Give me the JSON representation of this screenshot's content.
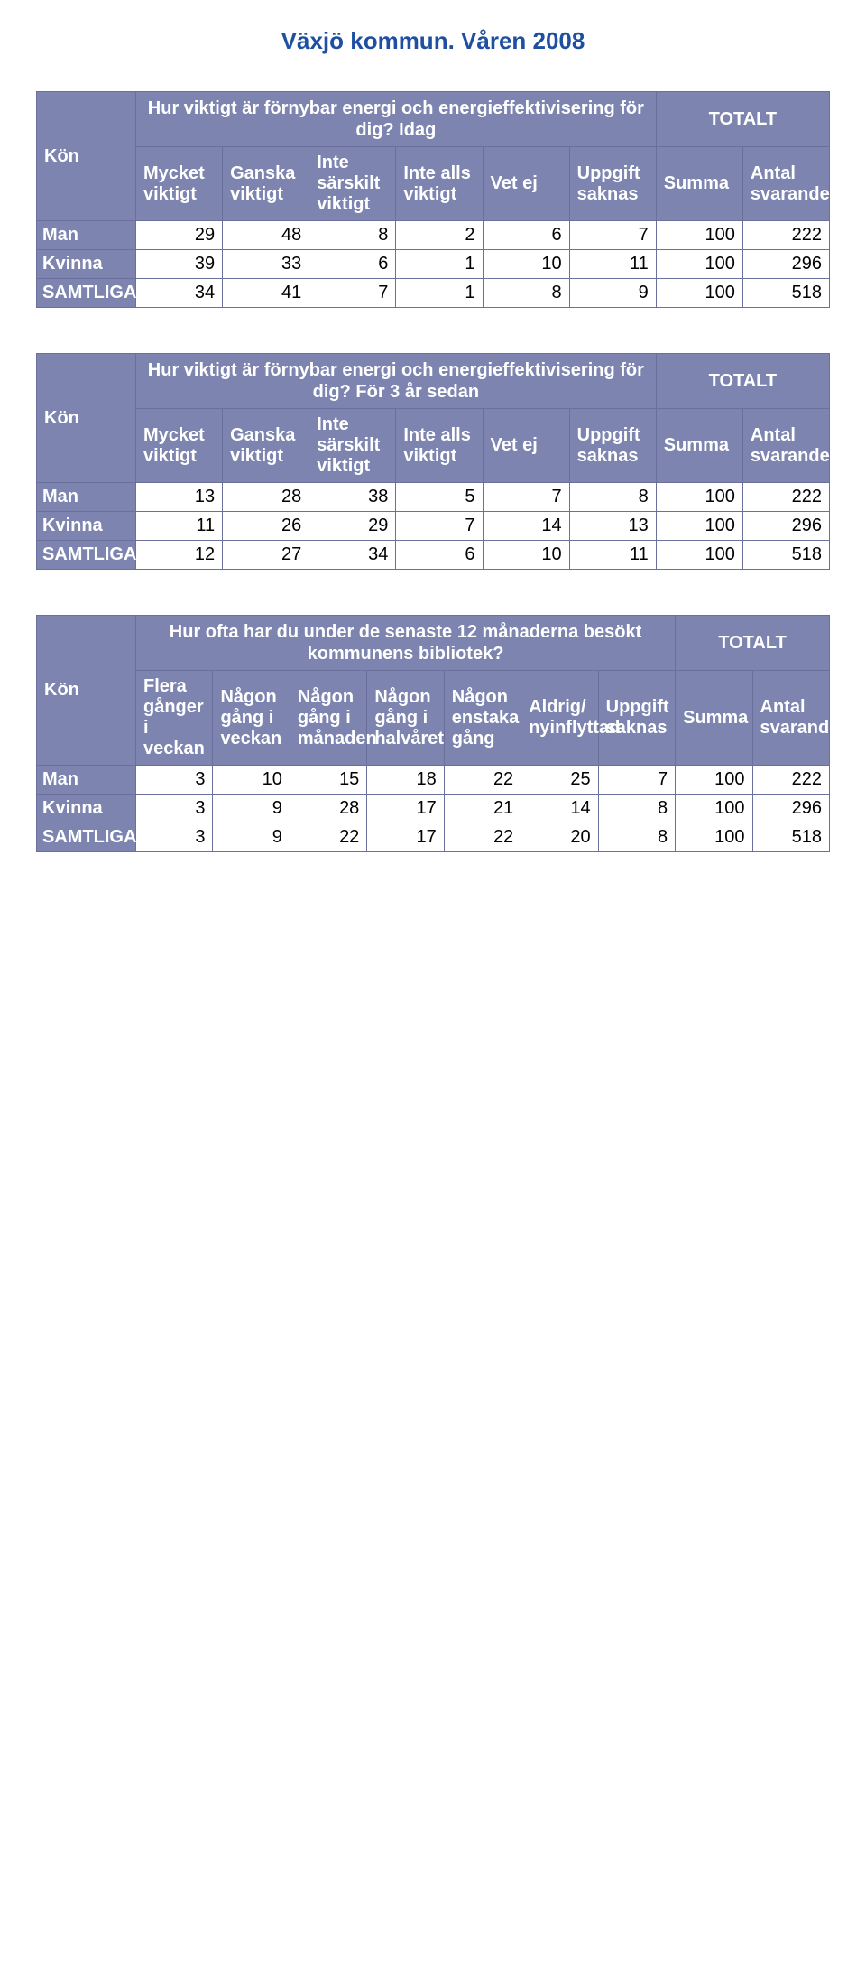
{
  "page": {
    "title": "Växjö kommun. Våren 2008"
  },
  "common": {
    "kon": "Kön",
    "totalt": "TOTALT",
    "summa": "Summa",
    "antal_svarande": "Antal svarande",
    "vet_ej": "Vet ej",
    "uppgift_saknas": "Uppgift saknas",
    "man": "Man",
    "kvinna": "Kvinna",
    "samtliga": "SAMTLIGA"
  },
  "t1": {
    "question": "Hur viktigt är förnybar energi och energieffektivisering för dig? Idag",
    "cols": {
      "c1": "Mycket viktigt",
      "c2": "Ganska viktigt",
      "c3": "Inte särskilt viktigt",
      "c4": "Inte alls viktigt"
    },
    "rows": {
      "man": {
        "c1": "29",
        "c2": "48",
        "c3": "8",
        "c4": "2",
        "vetej": "6",
        "sak": "7",
        "sum": "100",
        "n": "222"
      },
      "kvinna": {
        "c1": "39",
        "c2": "33",
        "c3": "6",
        "c4": "1",
        "vetej": "10",
        "sak": "11",
        "sum": "100",
        "n": "296"
      },
      "samtliga": {
        "c1": "34",
        "c2": "41",
        "c3": "7",
        "c4": "1",
        "vetej": "8",
        "sak": "9",
        "sum": "100",
        "n": "518"
      }
    }
  },
  "t2": {
    "question": "Hur viktigt är förnybar energi och energieffektivisering för dig? För 3 år sedan",
    "cols": {
      "c1": "Mycket viktigt",
      "c2": "Ganska viktigt",
      "c3": "Inte särskilt viktigt",
      "c4": "Inte alls viktigt"
    },
    "rows": {
      "man": {
        "c1": "13",
        "c2": "28",
        "c3": "38",
        "c4": "5",
        "vetej": "7",
        "sak": "8",
        "sum": "100",
        "n": "222"
      },
      "kvinna": {
        "c1": "11",
        "c2": "26",
        "c3": "29",
        "c4": "7",
        "vetej": "14",
        "sak": "13",
        "sum": "100",
        "n": "296"
      },
      "samtliga": {
        "c1": "12",
        "c2": "27",
        "c3": "34",
        "c4": "6",
        "vetej": "10",
        "sak": "11",
        "sum": "100",
        "n": "518"
      }
    }
  },
  "t3": {
    "question": "Hur ofta har du under de senaste 12 månaderna besökt kommunens bibliotek?",
    "cols": {
      "c1": "Flera gånger i veckan",
      "c2": "Någon gång i veckan",
      "c3": "Någon gång i månaden",
      "c4": "Någon gång i halvåret",
      "c5": "Någon enstaka gång",
      "c6": "Aldrig/ nyinflyttad"
    },
    "rows": {
      "man": {
        "c1": "3",
        "c2": "10",
        "c3": "15",
        "c4": "18",
        "c5": "22",
        "c6": "25",
        "sak": "7",
        "sum": "100",
        "n": "222"
      },
      "kvinna": {
        "c1": "3",
        "c2": "9",
        "c3": "28",
        "c4": "17",
        "c5": "21",
        "c6": "14",
        "sak": "8",
        "sum": "100",
        "n": "296"
      },
      "samtliga": {
        "c1": "3",
        "c2": "9",
        "c3": "22",
        "c4": "17",
        "c5": "22",
        "c6": "20",
        "sak": "8",
        "sum": "100",
        "n": "518"
      }
    }
  }
}
